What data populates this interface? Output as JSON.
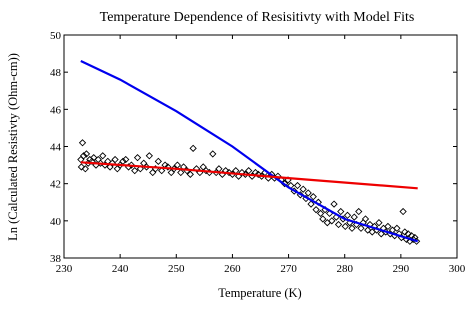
{
  "chart_data": {
    "type": "scatter",
    "title": "Temperature Dependence of Resisitivty with Model Fits",
    "xlabel": "Temperature (K)",
    "ylabel": "Ln (Calculated Resistivty (Ohm-cm))",
    "xlim": [
      230,
      300
    ],
    "ylim": [
      38,
      50
    ],
    "xticks": [
      230,
      240,
      250,
      260,
      270,
      280,
      290,
      300
    ],
    "yticks": [
      38,
      40,
      42,
      44,
      46,
      48,
      50
    ],
    "grid": false,
    "legend": "none",
    "series": [
      {
        "kind": "scatter",
        "marker": "open-diamond",
        "color": "#000000",
        "points": [
          [
            233.0,
            43.3
          ],
          [
            233.1,
            42.9
          ],
          [
            233.3,
            44.2
          ],
          [
            233.5,
            43.5
          ],
          [
            233.8,
            42.8
          ],
          [
            234.0,
            43.6
          ],
          [
            234.3,
            43.1
          ],
          [
            234.6,
            43.3
          ],
          [
            235.0,
            43.2
          ],
          [
            235.3,
            43.4
          ],
          [
            235.7,
            43.0
          ],
          [
            236.1,
            43.3
          ],
          [
            236.5,
            43.1
          ],
          [
            236.9,
            43.5
          ],
          [
            237.3,
            43.0
          ],
          [
            237.8,
            43.2
          ],
          [
            238.2,
            42.9
          ],
          [
            238.6,
            43.1
          ],
          [
            239.1,
            43.3
          ],
          [
            239.5,
            42.8
          ],
          [
            240.0,
            43.0
          ],
          [
            240.5,
            43.2
          ],
          [
            241.0,
            43.3
          ],
          [
            241.5,
            42.9
          ],
          [
            242.0,
            43.0
          ],
          [
            242.6,
            42.7
          ],
          [
            243.1,
            43.4
          ],
          [
            243.6,
            42.8
          ],
          [
            244.2,
            43.1
          ],
          [
            244.7,
            42.9
          ],
          [
            245.2,
            43.5
          ],
          [
            245.8,
            42.6
          ],
          [
            246.3,
            42.8
          ],
          [
            246.8,
            43.2
          ],
          [
            247.4,
            42.7
          ],
          [
            248.0,
            43.0
          ],
          [
            248.5,
            42.9
          ],
          [
            249.1,
            42.6
          ],
          [
            249.6,
            42.8
          ],
          [
            250.2,
            43.0
          ],
          [
            250.8,
            42.6
          ],
          [
            251.3,
            42.9
          ],
          [
            251.9,
            42.7
          ],
          [
            252.5,
            42.5
          ],
          [
            253.0,
            43.9
          ],
          [
            253.6,
            42.8
          ],
          [
            254.2,
            42.6
          ],
          [
            254.8,
            42.9
          ],
          [
            255.3,
            42.7
          ],
          [
            255.9,
            42.6
          ],
          [
            256.5,
            43.6
          ],
          [
            257.1,
            42.6
          ],
          [
            257.6,
            42.8
          ],
          [
            258.2,
            42.5
          ],
          [
            258.8,
            42.7
          ],
          [
            259.4,
            42.6
          ],
          [
            260.0,
            42.5
          ],
          [
            260.6,
            42.7
          ],
          [
            261.1,
            42.4
          ],
          [
            261.7,
            42.6
          ],
          [
            262.3,
            42.5
          ],
          [
            262.9,
            42.7
          ],
          [
            263.5,
            42.4
          ],
          [
            264.1,
            42.6
          ],
          [
            264.6,
            42.5
          ],
          [
            265.2,
            42.4
          ],
          [
            265.8,
            42.6
          ],
          [
            266.4,
            42.3
          ],
          [
            267.0,
            42.5
          ],
          [
            267.5,
            42.3
          ],
          [
            268.1,
            42.4
          ],
          [
            268.7,
            42.2
          ],
          [
            269.3,
            42.0
          ],
          [
            269.9,
            42.2
          ],
          [
            270.4,
            41.9
          ],
          [
            271.0,
            41.6
          ],
          [
            271.6,
            41.9
          ],
          [
            272.1,
            41.4
          ],
          [
            272.6,
            41.7
          ],
          [
            273.1,
            41.2
          ],
          [
            273.5,
            41.5
          ],
          [
            274.0,
            40.9
          ],
          [
            274.4,
            41.3
          ],
          [
            274.9,
            40.6
          ],
          [
            275.3,
            41.0
          ],
          [
            275.7,
            40.4
          ],
          [
            276.1,
            40.1
          ],
          [
            276.5,
            40.6
          ],
          [
            276.9,
            39.9
          ],
          [
            277.3,
            40.4
          ],
          [
            277.7,
            40.0
          ],
          [
            278.1,
            40.9
          ],
          [
            278.5,
            40.2
          ],
          [
            278.9,
            39.8
          ],
          [
            279.3,
            40.5
          ],
          [
            279.7,
            40.1
          ],
          [
            280.1,
            39.7
          ],
          [
            280.5,
            40.3
          ],
          [
            280.9,
            39.9
          ],
          [
            281.3,
            39.6
          ],
          [
            281.7,
            40.2
          ],
          [
            282.1,
            39.8
          ],
          [
            282.5,
            40.5
          ],
          [
            282.9,
            39.6
          ],
          [
            283.3,
            39.9
          ],
          [
            283.7,
            40.1
          ],
          [
            284.1,
            39.5
          ],
          [
            284.5,
            39.8
          ],
          [
            284.9,
            39.4
          ],
          [
            285.3,
            39.7
          ],
          [
            285.7,
            39.5
          ],
          [
            286.1,
            39.9
          ],
          [
            286.5,
            39.3
          ],
          [
            286.9,
            39.6
          ],
          [
            287.3,
            39.4
          ],
          [
            287.7,
            39.7
          ],
          [
            288.1,
            39.3
          ],
          [
            288.5,
            39.5
          ],
          [
            288.9,
            39.2
          ],
          [
            289.3,
            39.6
          ],
          [
            289.7,
            39.3
          ],
          [
            290.1,
            39.1
          ],
          [
            290.4,
            40.5
          ],
          [
            290.7,
            39.4
          ],
          [
            291.0,
            39.0
          ],
          [
            291.3,
            39.3
          ],
          [
            291.6,
            38.9
          ],
          [
            291.9,
            39.2
          ],
          [
            292.2,
            39.0
          ],
          [
            292.5,
            39.1
          ],
          [
            292.8,
            38.9
          ]
        ]
      },
      {
        "kind": "line",
        "color": "#0000ee",
        "points": [
          [
            233,
            48.6
          ],
          [
            240,
            47.6
          ],
          [
            250,
            45.9
          ],
          [
            260,
            44.0
          ],
          [
            270,
            41.8
          ],
          [
            280,
            40.1
          ],
          [
            293,
            38.9
          ]
        ]
      },
      {
        "kind": "line",
        "color": "#ee0000",
        "points": [
          [
            233,
            43.15
          ],
          [
            250,
            42.8
          ],
          [
            270,
            42.3
          ],
          [
            293,
            41.75
          ]
        ]
      }
    ]
  }
}
